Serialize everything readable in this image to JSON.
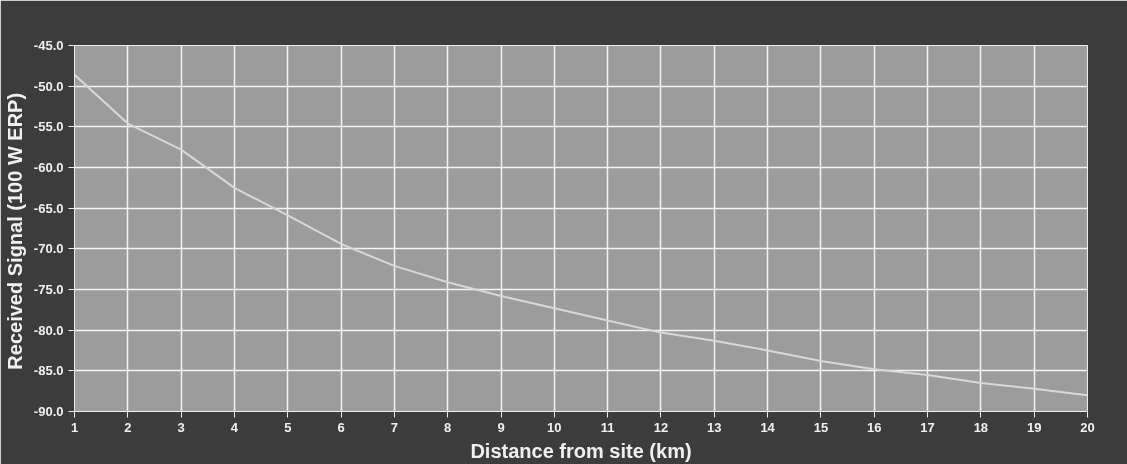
{
  "chart_data": {
    "type": "line",
    "xlabel": "Distance from site (km)",
    "ylabel": "Received  Signal (100 W ERP)",
    "x": [
      1,
      2,
      3,
      4,
      5,
      6,
      7,
      8,
      9,
      10,
      11,
      12,
      13,
      14,
      15,
      16,
      17,
      18,
      19,
      20
    ],
    "series": [
      {
        "color": "#d8d8d8",
        "values": [
          -48.6,
          -54.6,
          -57.8,
          -62.5,
          -65.9,
          -69.4,
          -72.1,
          -74.1,
          -75.8,
          -77.3,
          -78.8,
          -80.3,
          -81.3,
          -82.5,
          -83.8,
          -84.8,
          -85.5,
          -86.5,
          -87.2,
          -88.0
        ]
      }
    ],
    "xlim": [
      1,
      20
    ],
    "xticks": [
      1,
      2,
      3,
      4,
      5,
      6,
      7,
      8,
      9,
      10,
      11,
      12,
      13,
      14,
      15,
      16,
      17,
      18,
      19,
      20
    ],
    "ylim": [
      -90,
      -45
    ],
    "yticks": [
      {
        "value": -45,
        "label": "-45.0"
      },
      {
        "value": -50,
        "label": "-50.0"
      },
      {
        "value": -55,
        "label": "-55.0"
      },
      {
        "value": -60,
        "label": "-60.0"
      },
      {
        "value": -65,
        "label": "-65.0"
      },
      {
        "value": -70,
        "label": "-70.0"
      },
      {
        "value": -75,
        "label": "-75.0"
      },
      {
        "value": -80,
        "label": "-80.0"
      },
      {
        "value": -85,
        "label": "-85.0"
      },
      {
        "value": -90,
        "label": "-90.0"
      }
    ],
    "grid": true,
    "marker": "none",
    "line_style": "solid"
  }
}
